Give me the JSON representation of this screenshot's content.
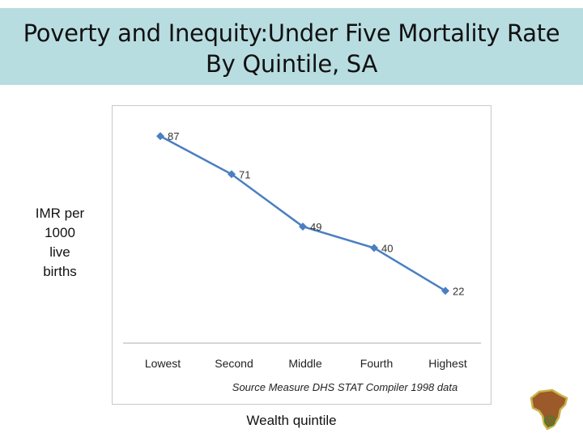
{
  "slide": {
    "title_line1": "Poverty and Inequity:Under Five Mortality Rate",
    "title_line2": "By Quintile, SA",
    "ylabel_lines": [
      "IMR per",
      "1000",
      "live",
      "births"
    ],
    "xlabel": "Wealth quintile",
    "source_note": "Source Measure DHS STAT Compiler 1998 data",
    "logo_icon": "africa-map-icon",
    "colors": {
      "title_bg": "#b8dde1",
      "series": "#4a7fc1"
    }
  },
  "chart_data": {
    "type": "line",
    "categories": [
      "Lowest",
      "Second",
      "Middle",
      "Fourth",
      "Highest"
    ],
    "series": [
      {
        "values": [
          87,
          71,
          49,
          40,
          22
        ]
      }
    ],
    "data_labels": [
      "87",
      "71",
      "49",
      "40",
      "22"
    ],
    "ylim": [
      0,
      100
    ],
    "grid": false,
    "legend": "none"
  }
}
